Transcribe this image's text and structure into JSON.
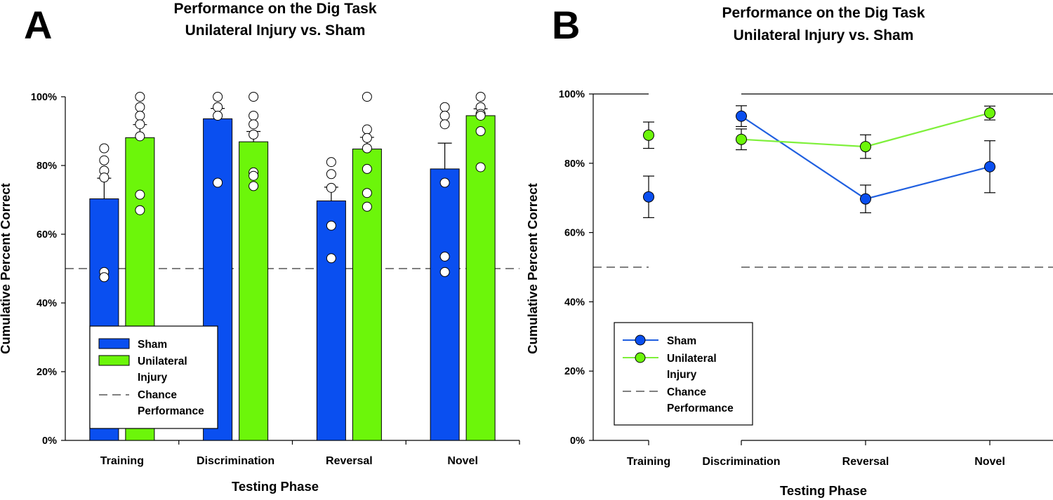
{
  "colors": {
    "sham": "#0a4ff0",
    "injury": "#6cf60a",
    "sham_line": "#1f5fe0",
    "injury_line": "#7ef03a",
    "ink": "#000000",
    "point_fill": "#ffffff"
  },
  "chart_data": [
    {
      "panel": "A",
      "type": "bar",
      "title": "Performance on the Dig Task",
      "subtitle": "Unilateral Injury vs. Sham",
      "xlabel": "Testing Phase",
      "ylabel": "Cumulative Percent Correct",
      "ylim": [
        0,
        100
      ],
      "yticks": [
        "0%",
        "20%",
        "40%",
        "60%",
        "80%",
        "100%"
      ],
      "categories": [
        "Training",
        "Discrimination",
        "Reversal",
        "Novel"
      ],
      "chance": 50,
      "series": [
        {
          "name": "Sham",
          "values": [
            70.3,
            93.6,
            69.7,
            79.0
          ],
          "sem": [
            6.0,
            3.0,
            4.0,
            7.5
          ],
          "points": [
            [
              85,
              81.5,
              78.5,
              76.5,
              49,
              47.5
            ],
            [
              100,
              97,
              94.5,
              75
            ],
            [
              81,
              77.5,
              73.5,
              62.5,
              53
            ],
            [
              97,
              94.5,
              92,
              75,
              53.5,
              49
            ]
          ]
        },
        {
          "name": "Unilateral Injury",
          "values": [
            88.1,
            86.9,
            84.8,
            94.5
          ],
          "sem": [
            3.8,
            3.0,
            3.4,
            2.0
          ],
          "points": [
            [
              100,
              97,
              94.5,
              92,
              88.5,
              71.5,
              67
            ],
            [
              100,
              94.5,
              92,
              89,
              78,
              77,
              74
            ],
            [
              100,
              90.5,
              88,
              85,
              79,
              72,
              68
            ],
            [
              100,
              97,
              95,
              94.5,
              90,
              79.5
            ]
          ]
        }
      ],
      "legend": {
        "position": "lower-left",
        "entries": [
          "Sham",
          "Unilateral",
          "Injury",
          "Chance",
          "Performance"
        ]
      }
    },
    {
      "panel": "B",
      "type": "line",
      "title": "Performance on the Dig Task",
      "subtitle": "Unilateral Injury vs. Sham",
      "xlabel": "Testing Phase",
      "ylabel": "Cumulative Percent Correct",
      "ylim": [
        0,
        100
      ],
      "yticks": [
        "0%",
        "20%",
        "40%",
        "60%",
        "80%",
        "100%"
      ],
      "categories": [
        "Training",
        "Discrimination",
        "Reversal",
        "Novel"
      ],
      "chance": 50,
      "series": [
        {
          "name": "Sham",
          "values": [
            70.3,
            93.6,
            69.7,
            79.0
          ],
          "sem": [
            6.0,
            3.0,
            4.0,
            7.5
          ]
        },
        {
          "name": "Unilateral Injury",
          "values": [
            88.1,
            86.9,
            84.8,
            94.5
          ],
          "sem": [
            3.8,
            3.0,
            3.4,
            2.0
          ]
        }
      ],
      "legend": {
        "position": "lower-left",
        "entries": [
          "Sham",
          "Unilateral",
          "Injury",
          "Chance",
          "Performance"
        ]
      }
    }
  ]
}
